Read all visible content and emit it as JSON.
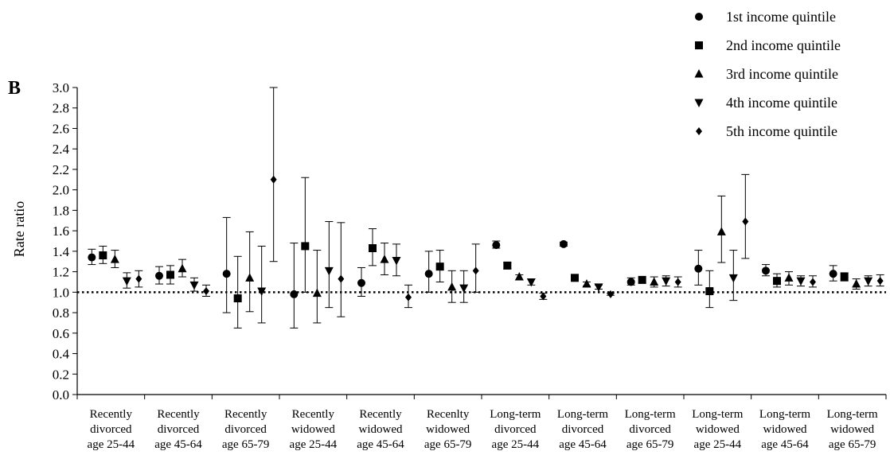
{
  "panel_label": "B",
  "chart_data": {
    "type": "scatter",
    "variant": "point-estimates-with-error-bars",
    "ylabel": "Rate ratio",
    "ylim": [
      0.0,
      3.0
    ],
    "yticks": [
      "0.0",
      "0.2",
      "0.4",
      "0.6",
      "0.8",
      "1.0",
      "1.2",
      "1.4",
      "1.6",
      "1.8",
      "2.0",
      "2.2",
      "2.4",
      "2.6",
      "2.8",
      "3.0"
    ],
    "reference_line": 1.0,
    "grid": false,
    "legend_position": "top-right",
    "categories": [
      [
        "Recently",
        "divorced",
        "age 25-44"
      ],
      [
        "Recently",
        "divorced",
        "age 45-64"
      ],
      [
        "Recently",
        "divorced",
        "age 65-79"
      ],
      [
        "Recently",
        "widowed",
        "age 25-44"
      ],
      [
        "Recently",
        "widowed",
        "age 45-64"
      ],
      [
        "Recenlty",
        "widowed",
        "age 65-79"
      ],
      [
        "Long-term",
        "divorced",
        "age 25-44"
      ],
      [
        "Long-term",
        "divorced",
        "age 45-64"
      ],
      [
        "Long-term",
        "divorced",
        "age 65-79"
      ],
      [
        "Long-term",
        "widowed",
        "age 25-44"
      ],
      [
        "Long-term",
        "widowed",
        "age 45-64"
      ],
      [
        "Long-term",
        "widowed",
        "age 65-79"
      ]
    ],
    "series": [
      {
        "name": "1st income quintile",
        "marker": "circle",
        "values": [
          1.34,
          1.16,
          1.18,
          0.98,
          1.09,
          1.18,
          1.46,
          1.47,
          1.1,
          1.23,
          1.21,
          1.18
        ],
        "lower": [
          1.27,
          1.08,
          0.8,
          0.65,
          0.96,
          1.0,
          1.43,
          1.45,
          1.07,
          1.07,
          1.16,
          1.11
        ],
        "upper": [
          1.42,
          1.25,
          1.73,
          1.48,
          1.24,
          1.4,
          1.5,
          1.49,
          1.14,
          1.41,
          1.27,
          1.26
        ]
      },
      {
        "name": "2nd income quintile",
        "marker": "square",
        "values": [
          1.36,
          1.17,
          0.94,
          1.45,
          1.43,
          1.25,
          1.26,
          1.14,
          1.12,
          1.01,
          1.11,
          1.15
        ],
        "lower": [
          1.28,
          1.08,
          0.65,
          1.0,
          1.26,
          1.1,
          1.23,
          1.12,
          1.09,
          0.85,
          1.05,
          1.11
        ],
        "upper": [
          1.45,
          1.26,
          1.35,
          2.12,
          1.62,
          1.41,
          1.29,
          1.16,
          1.14,
          1.21,
          1.18,
          1.19
        ]
      },
      {
        "name": "3rd income quintile",
        "marker": "triangle-up",
        "values": [
          1.32,
          1.23,
          1.14,
          0.99,
          1.32,
          1.05,
          1.15,
          1.08,
          1.1,
          1.59,
          1.14,
          1.08
        ],
        "lower": [
          1.24,
          1.15,
          0.81,
          0.7,
          1.17,
          0.9,
          1.12,
          1.06,
          1.05,
          1.29,
          1.07,
          1.03
        ],
        "upper": [
          1.41,
          1.32,
          1.59,
          1.41,
          1.48,
          1.21,
          1.17,
          1.1,
          1.15,
          1.94,
          1.2,
          1.13
        ]
      },
      {
        "name": "4th income quintile",
        "marker": "triangle-down",
        "values": [
          1.11,
          1.07,
          1.01,
          1.21,
          1.31,
          1.04,
          1.1,
          1.05,
          1.11,
          1.14,
          1.11,
          1.11
        ],
        "lower": [
          1.04,
          1.01,
          0.7,
          0.85,
          1.16,
          0.9,
          1.07,
          1.03,
          1.06,
          0.92,
          1.06,
          1.06
        ],
        "upper": [
          1.19,
          1.14,
          1.45,
          1.69,
          1.47,
          1.21,
          1.13,
          1.07,
          1.16,
          1.41,
          1.16,
          1.16
        ]
      },
      {
        "name": "5th income quintile",
        "marker": "diamond",
        "values": [
          1.13,
          1.01,
          2.1,
          1.13,
          0.95,
          1.21,
          0.96,
          0.98,
          1.1,
          1.69,
          1.1,
          1.11
        ],
        "lower": [
          1.05,
          0.96,
          1.3,
          0.76,
          0.85,
          1.0,
          0.93,
          0.97,
          1.05,
          1.33,
          1.05,
          1.06
        ],
        "upper": [
          1.21,
          1.07,
          3.0,
          1.68,
          1.07,
          1.47,
          0.99,
          0.99,
          1.15,
          2.15,
          1.16,
          1.17
        ]
      }
    ]
  }
}
